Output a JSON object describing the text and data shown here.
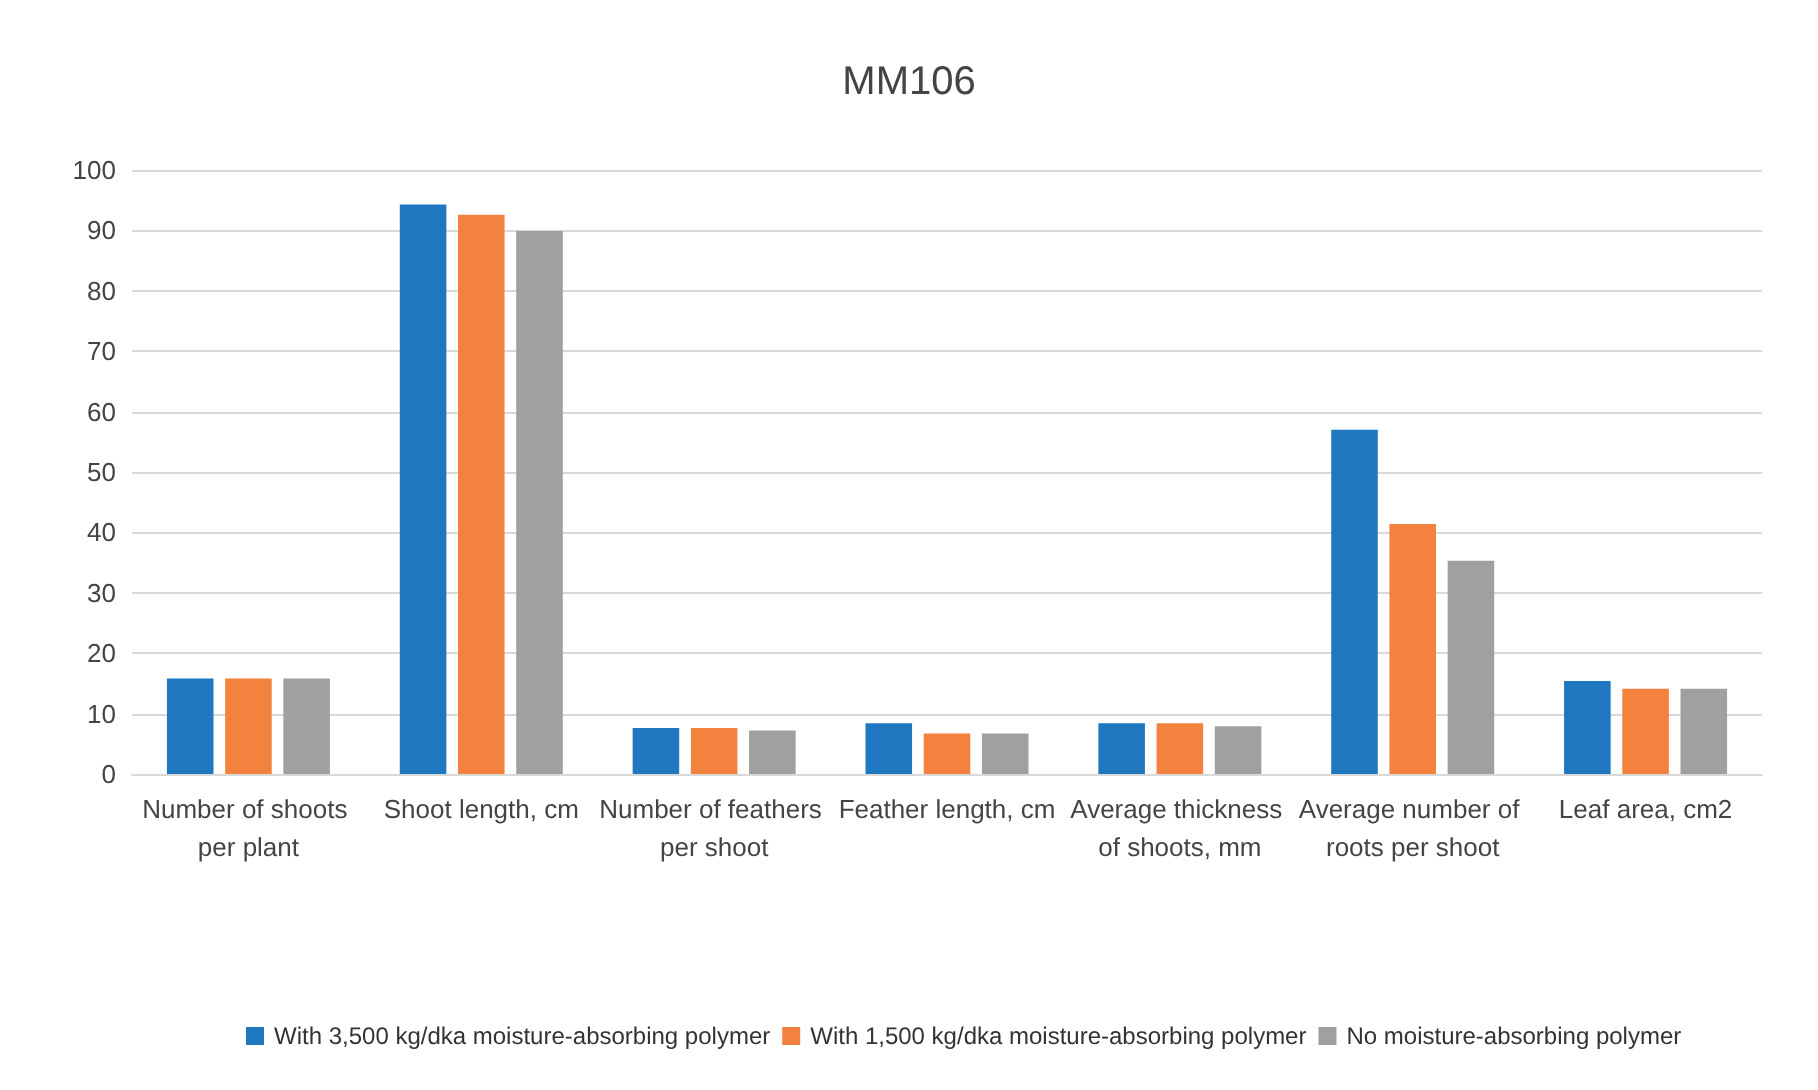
{
  "chart_data": {
    "type": "bar",
    "title": "MM106",
    "categories": [
      "Number of shoots per plant",
      "Shoot length, cm",
      "Number of feathers per shoot",
      "Feather length, cm",
      "Average thickness of shoots, mm",
      "Average number of roots per shoot",
      "Leaf area, cm2"
    ],
    "series": [
      {
        "name": "With 3,500 kg/dka moisture-absorbing polymer",
        "color": "#1f77c0",
        "values": [
          15.8,
          94.3,
          7.6,
          8.4,
          8.4,
          57.0,
          15.4
        ]
      },
      {
        "name": "With 1,500 kg/dka moisture-absorbing polymer",
        "color": "#f4823f",
        "values": [
          15.8,
          92.6,
          7.6,
          6.7,
          8.4,
          41.4,
          14.1
        ]
      },
      {
        "name": "No moisture-absorbing polymer",
        "color": "#a0a0a0",
        "values": [
          15.8,
          89.9,
          7.2,
          6.7,
          7.9,
          35.3,
          14.1
        ]
      }
    ],
    "ylim": [
      0,
      100
    ],
    "yticks": [
      0,
      10,
      20,
      30,
      40,
      50,
      60,
      70,
      80,
      90,
      100
    ],
    "grid": "y",
    "legend": "bottom"
  }
}
